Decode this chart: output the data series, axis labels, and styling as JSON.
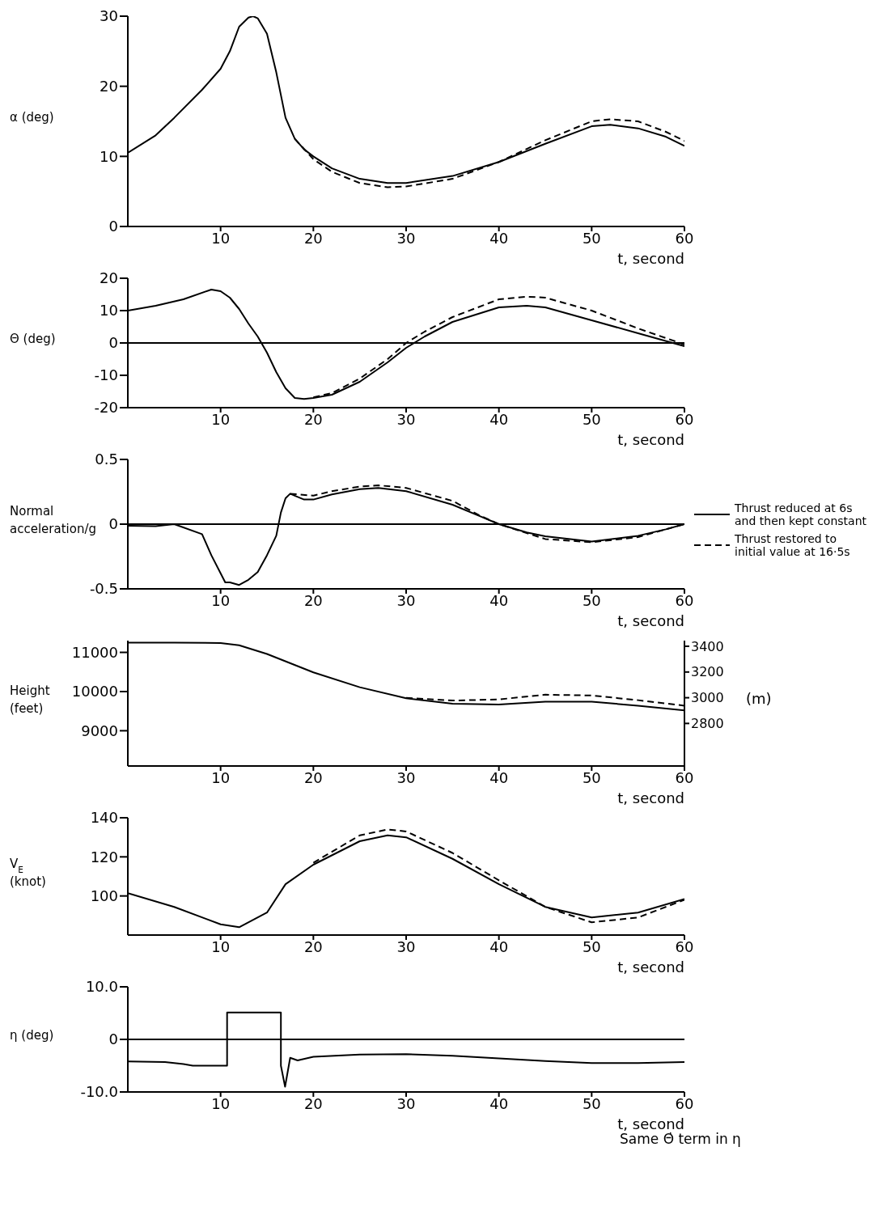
{
  "chart_data": [
    {
      "type": "line",
      "ylabel": "α (deg)",
      "xlabel": "t, second",
      "xlim": [
        0,
        60
      ],
      "xticks": [
        10,
        20,
        30,
        40,
        50,
        60
      ],
      "ylim": [
        0,
        30
      ],
      "yticks": [
        0,
        10,
        20,
        30
      ],
      "series": [
        {
          "color": "#000000",
          "line_style": "solid",
          "x": [
            0,
            3,
            5,
            8,
            10,
            11,
            12,
            13,
            13.5,
            14,
            15,
            16,
            17,
            18,
            19,
            20,
            22,
            25,
            28,
            30,
            35,
            40,
            45,
            50,
            52,
            55,
            58,
            60
          ],
          "values": [
            10.5,
            13,
            15.5,
            19.5,
            22.5,
            25,
            28.5,
            29.8,
            30,
            29.7,
            27.5,
            22,
            15.5,
            12.5,
            11,
            10,
            8.3,
            6.8,
            6.2,
            6.2,
            7.2,
            9.2,
            11.8,
            14.3,
            14.5,
            14,
            12.8,
            11.5
          ]
        },
        {
          "color": "#000000",
          "line_style": "dashed",
          "x": [
            18,
            20,
            22,
            25,
            28,
            30,
            35,
            40,
            45,
            50,
            52,
            55,
            58,
            60
          ],
          "values": [
            12.5,
            9.6,
            7.8,
            6.2,
            5.6,
            5.7,
            6.8,
            9.2,
            12.3,
            15,
            15.3,
            15,
            13.5,
            12.2
          ]
        }
      ]
    },
    {
      "type": "line",
      "ylabel": "Θ (deg)",
      "xlabel": "t, second",
      "xlim": [
        0,
        60
      ],
      "xticks": [
        10,
        20,
        30,
        40,
        50,
        60
      ],
      "ylim": [
        -20,
        20
      ],
      "yticks": [
        -20,
        -10,
        0,
        10,
        20
      ],
      "ref_lines": [
        {
          "axis": "y",
          "value": 0
        }
      ],
      "series": [
        {
          "color": "#000000",
          "line_style": "solid",
          "x": [
            0,
            3,
            6,
            9,
            10,
            11,
            12,
            13,
            14,
            15,
            16,
            17,
            18,
            19,
            20,
            22,
            25,
            28,
            30,
            32,
            35,
            40,
            43,
            45,
            50,
            55,
            60
          ],
          "values": [
            10,
            11.5,
            13.5,
            16.5,
            16,
            14,
            10.5,
            6,
            2,
            -3,
            -9,
            -14,
            -17,
            -17.3,
            -17,
            -16,
            -12,
            -6,
            -1.5,
            2,
            6.5,
            11,
            11.5,
            11,
            7,
            3,
            -1
          ]
        },
        {
          "color": "#000000",
          "line_style": "dashed",
          "x": [
            20,
            22,
            25,
            28,
            30,
            32,
            35,
            40,
            43,
            45,
            50,
            55,
            60
          ],
          "values": [
            -16.8,
            -15.5,
            -11,
            -5,
            0,
            3.5,
            8,
            13.5,
            14.3,
            14,
            10,
            4.5,
            -0.5
          ]
        }
      ]
    },
    {
      "type": "line",
      "ylabel": "Normal acceleration/g",
      "xlabel": "t, second",
      "xlim": [
        0,
        60
      ],
      "xticks": [
        10,
        20,
        30,
        40,
        50,
        60
      ],
      "ylim": [
        -0.5,
        0.5
      ],
      "yticks": [
        {
          "value": -0.5,
          "label": "-0.5"
        },
        0,
        {
          "value": 0.5,
          "label": "0.5"
        }
      ],
      "legend": "bottom right",
      "ref_lines": [
        {
          "axis": "y",
          "value": 0
        }
      ],
      "series": [
        {
          "name": "Thrust reduced at 6s and then kept constant",
          "color": "#000000",
          "line_style": "solid",
          "x": [
            0,
            3,
            5,
            8,
            9,
            10,
            10.5,
            11,
            12,
            13,
            14,
            15,
            16,
            16.5,
            17,
            17.5,
            18,
            19,
            20,
            22,
            25,
            27,
            30,
            35,
            38,
            40,
            43,
            45,
            50,
            55,
            58,
            60
          ],
          "values": [
            -0.013,
            -0.015,
            0,
            -0.077,
            -0.24,
            -0.38,
            -0.45,
            -0.45,
            -0.47,
            -0.43,
            -0.37,
            -0.24,
            -0.09,
            0.09,
            0.2,
            0.235,
            0.22,
            0.19,
            0.19,
            0.23,
            0.27,
            0.28,
            0.255,
            0.15,
            0.06,
            0,
            -0.064,
            -0.094,
            -0.135,
            -0.09,
            -0.04,
            0
          ]
        },
        {
          "name": "Thrust restored to initial value at 16·5s",
          "color": "#000000",
          "line_style": "dashed",
          "x": [
            17.5,
            20,
            22,
            25,
            27,
            30,
            35,
            38,
            40,
            45,
            50,
            55,
            60
          ],
          "values": [
            0.235,
            0.22,
            0.255,
            0.29,
            0.3,
            0.28,
            0.18,
            0.064,
            0,
            -0.115,
            -0.14,
            -0.1,
            0
          ]
        }
      ]
    },
    {
      "type": "line",
      "ylabel": "Height (feet)",
      "y2label": "(m)",
      "xlabel": "t, second",
      "xlim": [
        0,
        60
      ],
      "xticks": [
        10,
        20,
        30,
        40,
        50,
        60
      ],
      "ylim": [
        8100,
        11300
      ],
      "yticks": [
        9000,
        10000,
        11000
      ],
      "y2lim": [
        2468.9,
        3444.2
      ],
      "y2ticks": [
        2800,
        3000,
        3200,
        3400
      ],
      "series": [
        {
          "color": "#000000",
          "line_style": "solid",
          "x": [
            0,
            5,
            10,
            12,
            15,
            20,
            25,
            30,
            35,
            40,
            45,
            50,
            55,
            60
          ],
          "values": [
            11250,
            11250,
            11240,
            11180,
            10960,
            10490,
            10110,
            9830,
            9690,
            9670,
            9740,
            9740,
            9640,
            9520
          ]
        },
        {
          "color": "#000000",
          "line_style": "dashed",
          "x": [
            30,
            35,
            40,
            45,
            50,
            55,
            60
          ],
          "values": [
            9840,
            9770,
            9800,
            9920,
            9900,
            9780,
            9640
          ]
        }
      ]
    },
    {
      "type": "line",
      "ylabel": "V$_{E}$ (knot)",
      "xlabel": "t, second",
      "xlim": [
        0,
        60
      ],
      "xticks": [
        10,
        20,
        30,
        40,
        50,
        60
      ],
      "ylim": [
        80,
        140
      ],
      "yticks": [
        100,
        120,
        140
      ],
      "series": [
        {
          "color": "#000000",
          "line_style": "solid",
          "x": [
            0,
            5,
            10,
            12,
            15,
            17,
            20,
            25,
            28,
            30,
            35,
            40,
            45,
            50,
            55,
            60
          ],
          "values": [
            101.4,
            94.4,
            85.5,
            84,
            91.5,
            106,
            116,
            128,
            131,
            130,
            119,
            106,
            94.4,
            89,
            91.5,
            98.4
          ]
        },
        {
          "color": "#000000",
          "line_style": "dashed",
          "x": [
            20,
            25,
            28,
            30,
            35,
            40,
            45,
            50,
            55,
            60
          ],
          "values": [
            117,
            131,
            134,
            133,
            122,
            108,
            94.4,
            86.5,
            89,
            98
          ]
        }
      ]
    },
    {
      "type": "line",
      "ylabel": "η (deg)",
      "xlabel": "t, second",
      "xlim": [
        0,
        60
      ],
      "xticks": [
        10,
        20,
        30,
        40,
        50,
        60
      ],
      "ylim": [
        -10,
        10
      ],
      "yticks": [
        {
          "value": -10,
          "label": "-10.0"
        },
        0,
        {
          "value": 10,
          "label": "10.0"
        }
      ],
      "ref_lines": [
        {
          "axis": "y",
          "value": 0
        }
      ],
      "annotations": [
        "Same Θ̇ term in η"
      ],
      "series": [
        {
          "color": "#000000",
          "line_style": "solid",
          "x": [
            0,
            4,
            6,
            7,
            10.7,
            10.7,
            16.5,
            16.5,
            16.95,
            17.5,
            18.3,
            20,
            25,
            30,
            35,
            40,
            45,
            50,
            55,
            60
          ],
          "values": [
            -4.2,
            -4.3,
            -4.7,
            -5,
            -5,
            5.1,
            5.1,
            -5,
            -9,
            -3.5,
            -4,
            -3.3,
            -2.9,
            -2.8,
            -3.1,
            -3.6,
            -4.1,
            -4.5,
            -4.5,
            -4.3
          ]
        }
      ]
    }
  ]
}
